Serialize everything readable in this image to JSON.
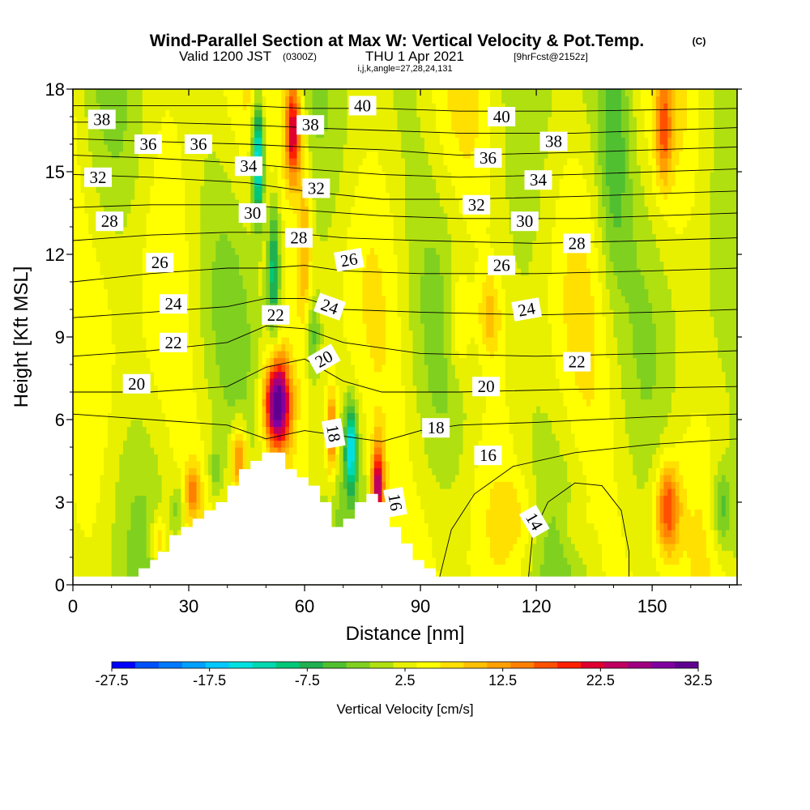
{
  "header": {
    "title": "Wind-Parallel Section at Max W: Vertical Velocity & Pot.Temp.",
    "copyright": "(C)",
    "valid_prefix": "Valid 1200 JST",
    "valid_utc": "(0300Z)",
    "valid_date": "THU 1 Apr 2021",
    "forecast_info": "[9hrFcst@2152z]",
    "indices": "i,j,k,angle=27,28,24,131"
  },
  "chart_data": {
    "type": "heatmap",
    "xlabel": "Distance [nm]",
    "ylabel": "Height [Kft MSL]",
    "xlim": [
      0,
      172
    ],
    "ylim": [
      0,
      18
    ],
    "x_ticks": [
      "0",
      "30",
      "60",
      "90",
      "120",
      "150"
    ],
    "y_ticks": [
      "0",
      "3",
      "6",
      "9",
      "12",
      "15",
      "18"
    ],
    "colorbar": {
      "title": "Vertical Velocity [cm/s]",
      "tick_labels": [
        "-27.5",
        "-17.5",
        "-7.5",
        "2.5",
        "12.5",
        "22.5",
        "32.5"
      ],
      "colors": [
        "#0000ff",
        "#0050ff",
        "#0078ff",
        "#00a0ff",
        "#00c8ff",
        "#00e0e0",
        "#00d8b0",
        "#00c878",
        "#20b050",
        "#50c030",
        "#80d020",
        "#b0e010",
        "#e8f000",
        "#ffff00",
        "#ffe000",
        "#ffc000",
        "#ffa000",
        "#ff8000",
        "#ff5000",
        "#ff2000",
        "#e00030",
        "#c00060",
        "#a00080",
        "#8000a0",
        "#600090"
      ]
    },
    "terrain_profile": [
      [
        0,
        0.3
      ],
      [
        17,
        0.3
      ],
      [
        17,
        0.6
      ],
      [
        20,
        0.6
      ],
      [
        20,
        0.9
      ],
      [
        22,
        0.9
      ],
      [
        22,
        1.2
      ],
      [
        25,
        1.2
      ],
      [
        25,
        1.8
      ],
      [
        28,
        1.8
      ],
      [
        28,
        2.1
      ],
      [
        31,
        2.1
      ],
      [
        31,
        2.4
      ],
      [
        34,
        2.4
      ],
      [
        34,
        2.7
      ],
      [
        37,
        2.7
      ],
      [
        37,
        3.0
      ],
      [
        40,
        3.0
      ],
      [
        40,
        3.6
      ],
      [
        43,
        3.6
      ],
      [
        43,
        4.2
      ],
      [
        46,
        4.2
      ],
      [
        46,
        4.5
      ],
      [
        49,
        4.5
      ],
      [
        49,
        4.8
      ],
      [
        55,
        4.8
      ],
      [
        55,
        4.2
      ],
      [
        58,
        4.2
      ],
      [
        58,
        3.9
      ],
      [
        61,
        3.9
      ],
      [
        61,
        3.6
      ],
      [
        64,
        3.6
      ],
      [
        64,
        3.0
      ],
      [
        67,
        3.0
      ],
      [
        67,
        2.1
      ],
      [
        70,
        2.1
      ],
      [
        70,
        2.4
      ],
      [
        73,
        2.4
      ],
      [
        73,
        3.0
      ],
      [
        76,
        3.0
      ],
      [
        76,
        3.3
      ],
      [
        79,
        3.3
      ],
      [
        79,
        3.0
      ],
      [
        82,
        3.0
      ],
      [
        82,
        2.1
      ],
      [
        85,
        2.1
      ],
      [
        85,
        1.5
      ],
      [
        88,
        1.5
      ],
      [
        88,
        0.9
      ],
      [
        91,
        0.9
      ],
      [
        91,
        0.6
      ],
      [
        94,
        0.6
      ],
      [
        94,
        0.3
      ],
      [
        172,
        0.3
      ]
    ],
    "theta_contours": [
      {
        "label": "14",
        "points": [
          [
            118,
            0.3
          ],
          [
            119,
            1.8
          ],
          [
            123,
            3.0
          ],
          [
            130,
            3.7
          ],
          [
            137,
            3.6
          ],
          [
            142,
            2.7
          ],
          [
            144,
            1.2
          ],
          [
            144,
            0.3
          ]
        ]
      },
      {
        "label": "16",
        "points": [
          [
            95,
            0.3
          ],
          [
            98,
            2.0
          ],
          [
            104,
            3.3
          ],
          [
            114,
            4.3
          ],
          [
            130,
            4.8
          ],
          [
            150,
            5.1
          ],
          [
            172,
            5.3
          ]
        ]
      },
      {
        "label": "18",
        "points": [
          [
            0,
            6.2
          ],
          [
            20,
            6.0
          ],
          [
            40,
            5.8
          ],
          [
            50,
            5.3
          ],
          [
            60,
            5.6
          ],
          [
            70,
            5.4
          ],
          [
            80,
            5.2
          ],
          [
            90,
            5.6
          ],
          [
            100,
            5.8
          ],
          [
            120,
            5.9
          ],
          [
            150,
            6.1
          ],
          [
            172,
            6.2
          ]
        ]
      },
      {
        "label": "20",
        "points": [
          [
            0,
            7.0
          ],
          [
            20,
            7.0
          ],
          [
            40,
            7.2
          ],
          [
            50,
            7.9
          ],
          [
            60,
            8.2
          ],
          [
            70,
            7.4
          ],
          [
            80,
            7.0
          ],
          [
            100,
            7.0
          ],
          [
            130,
            7.1
          ],
          [
            172,
            7.2
          ]
        ]
      },
      {
        "label": "22",
        "points": [
          [
            0,
            8.3
          ],
          [
            20,
            8.5
          ],
          [
            40,
            8.8
          ],
          [
            50,
            9.4
          ],
          [
            60,
            9.3
          ],
          [
            70,
            8.8
          ],
          [
            90,
            8.4
          ],
          [
            120,
            8.3
          ],
          [
            150,
            8.4
          ],
          [
            172,
            8.5
          ]
        ]
      },
      {
        "label": "24",
        "points": [
          [
            0,
            9.7
          ],
          [
            20,
            9.9
          ],
          [
            40,
            10.1
          ],
          [
            50,
            10.4
          ],
          [
            60,
            10.4
          ],
          [
            70,
            10.0
          ],
          [
            90,
            9.9
          ],
          [
            120,
            9.8
          ],
          [
            150,
            9.9
          ],
          [
            172,
            10.0
          ]
        ]
      },
      {
        "label": "26",
        "points": [
          [
            0,
            11.0
          ],
          [
            20,
            11.3
          ],
          [
            40,
            11.5
          ],
          [
            50,
            11.5
          ],
          [
            60,
            11.6
          ],
          [
            70,
            11.4
          ],
          [
            90,
            11.3
          ],
          [
            120,
            11.3
          ],
          [
            150,
            11.4
          ],
          [
            172,
            11.5
          ]
        ]
      },
      {
        "label": "28",
        "points": [
          [
            0,
            12.5
          ],
          [
            20,
            12.7
          ],
          [
            40,
            12.8
          ],
          [
            55,
            12.8
          ],
          [
            70,
            12.6
          ],
          [
            90,
            12.5
          ],
          [
            120,
            12.4
          ],
          [
            150,
            12.5
          ],
          [
            172,
            12.6
          ]
        ]
      },
      {
        "label": "30",
        "points": [
          [
            0,
            13.7
          ],
          [
            20,
            13.8
          ],
          [
            45,
            13.8
          ],
          [
            60,
            13.6
          ],
          [
            80,
            13.4
          ],
          [
            100,
            13.3
          ],
          [
            130,
            13.3
          ],
          [
            172,
            13.5
          ]
        ]
      },
      {
        "label": "32",
        "points": [
          [
            0,
            14.9
          ],
          [
            20,
            14.8
          ],
          [
            45,
            14.6
          ],
          [
            60,
            14.3
          ],
          [
            80,
            14.0
          ],
          [
            100,
            14.0
          ],
          [
            130,
            14.1
          ],
          [
            172,
            14.3
          ]
        ]
      },
      {
        "label": "34",
        "points": [
          [
            0,
            15.6
          ],
          [
            20,
            15.5
          ],
          [
            45,
            15.3
          ],
          [
            60,
            15.1
          ],
          [
            80,
            14.9
          ],
          [
            100,
            14.8
          ],
          [
            130,
            14.9
          ],
          [
            172,
            15.1
          ]
        ]
      },
      {
        "label": "36",
        "points": [
          [
            0,
            16.2
          ],
          [
            20,
            16.1
          ],
          [
            45,
            16.0
          ],
          [
            60,
            15.9
          ],
          [
            80,
            15.8
          ],
          [
            100,
            15.6
          ],
          [
            130,
            15.7
          ],
          [
            172,
            15.9
          ]
        ]
      },
      {
        "label": "38",
        "points": [
          [
            0,
            16.8
          ],
          [
            20,
            16.8
          ],
          [
            45,
            16.7
          ],
          [
            60,
            16.6
          ],
          [
            80,
            16.5
          ],
          [
            100,
            16.4
          ],
          [
            130,
            16.4
          ],
          [
            172,
            16.6
          ]
        ]
      },
      {
        "label": "40",
        "points": [
          [
            0,
            17.4
          ],
          [
            20,
            17.4
          ],
          [
            45,
            17.4
          ],
          [
            60,
            17.3
          ],
          [
            80,
            17.3
          ],
          [
            100,
            17.2
          ],
          [
            130,
            17.2
          ],
          [
            172,
            17.3
          ]
        ]
      }
    ],
    "contour_labels": [
      {
        "text": "38",
        "x": 7.5,
        "y": 16.9,
        "rot": 0
      },
      {
        "text": "36",
        "x": 19.5,
        "y": 16.0,
        "rot": 0
      },
      {
        "text": "36",
        "x": 32.5,
        "y": 16.0,
        "rot": 0
      },
      {
        "text": "32",
        "x": 6.5,
        "y": 14.8,
        "rot": 0
      },
      {
        "text": "34",
        "x": 45.5,
        "y": 15.2,
        "rot": 0
      },
      {
        "text": "30",
        "x": 46.5,
        "y": 13.5,
        "rot": 0
      },
      {
        "text": "28",
        "x": 9.5,
        "y": 13.2,
        "rot": 0
      },
      {
        "text": "26",
        "x": 22.5,
        "y": 11.7,
        "rot": 0
      },
      {
        "text": "24",
        "x": 26.0,
        "y": 10.2,
        "rot": 0
      },
      {
        "text": "22",
        "x": 26.0,
        "y": 8.8,
        "rot": 0
      },
      {
        "text": "20",
        "x": 16.5,
        "y": 7.3,
        "rot": 0
      },
      {
        "text": "40",
        "x": 75.0,
        "y": 17.4,
        "rot": 0
      },
      {
        "text": "38",
        "x": 61.5,
        "y": 16.7,
        "rot": 0
      },
      {
        "text": "32",
        "x": 63.0,
        "y": 14.4,
        "rot": 0
      },
      {
        "text": "28",
        "x": 58.5,
        "y": 12.6,
        "rot": 0
      },
      {
        "text": "26",
        "x": 71.5,
        "y": 11.8,
        "rot": 10
      },
      {
        "text": "24",
        "x": 66.5,
        "y": 10.1,
        "rot": -20
      },
      {
        "text": "22",
        "x": 52.5,
        "y": 9.8,
        "rot": 0
      },
      {
        "text": "20",
        "x": 65.0,
        "y": 8.2,
        "rot": 30
      },
      {
        "text": "18",
        "x": 67.5,
        "y": 5.5,
        "rot": -80
      },
      {
        "text": "16",
        "x": 83.5,
        "y": 3.0,
        "rot": -80
      },
      {
        "text": "40",
        "x": 111.0,
        "y": 17.0,
        "rot": 0
      },
      {
        "text": "38",
        "x": 124.5,
        "y": 16.1,
        "rot": 0
      },
      {
        "text": "36",
        "x": 107.5,
        "y": 15.5,
        "rot": 0
      },
      {
        "text": "34",
        "x": 120.5,
        "y": 14.7,
        "rot": 0
      },
      {
        "text": "32",
        "x": 104.5,
        "y": 13.8,
        "rot": 0
      },
      {
        "text": "30",
        "x": 117.0,
        "y": 13.2,
        "rot": 0
      },
      {
        "text": "28",
        "x": 130.5,
        "y": 12.4,
        "rot": 0
      },
      {
        "text": "26",
        "x": 111.0,
        "y": 11.6,
        "rot": 0
      },
      {
        "text": "24",
        "x": 117.5,
        "y": 10.0,
        "rot": 10
      },
      {
        "text": "22",
        "x": 130.5,
        "y": 8.1,
        "rot": 0
      },
      {
        "text": "20",
        "x": 107.0,
        "y": 7.2,
        "rot": 0
      },
      {
        "text": "18",
        "x": 94.0,
        "y": 5.7,
        "rot": 0
      },
      {
        "text": "16",
        "x": 107.5,
        "y": 4.7,
        "rot": 0
      },
      {
        "text": "14",
        "x": 119.5,
        "y": 2.3,
        "rot": -60
      }
    ]
  }
}
